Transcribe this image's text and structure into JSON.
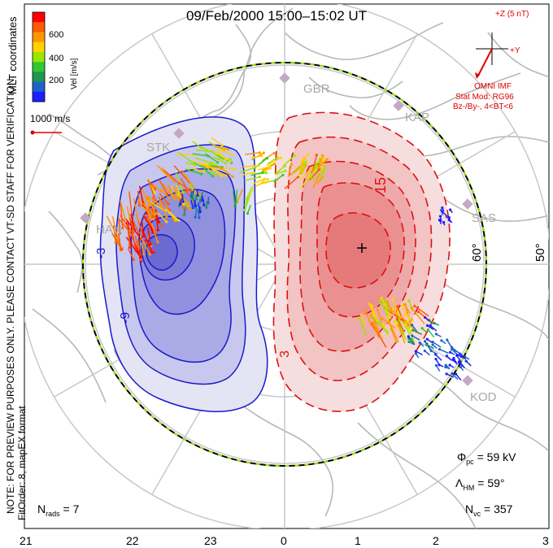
{
  "title": "09/Feb/2000 15:00–15:02 UT",
  "colorbar": {
    "label": "Vel [m/s]",
    "ticks": [
      "600",
      "400",
      "200"
    ],
    "colors": [
      "#ff0000",
      "#ff5a00",
      "#ff9600",
      "#ffd200",
      "#9be600",
      "#32c832",
      "#1e9650",
      "#1e64c8",
      "#1e1eff"
    ]
  },
  "coordinates_label": "MLT coordinates",
  "preview_note": "NOTE: FOR PREVIEW PURPOSES ONLY. PLEASE CONTACT VT-SD STAFF FOR VERIFICATION.",
  "fit_order": "FitOrder: 8, mapEX format",
  "reference_vector": "1000 m/s",
  "imf": {
    "plus_z": "+Z (5 nT)",
    "plus_y": "+Y",
    "source": "OMNI IMF",
    "stat_mod": "Stat Mod: RG96",
    "condition": "Bz-/By-, 4<BT<6"
  },
  "stations": [
    "GBR",
    "KAP",
    "STK",
    "SAS",
    "HAN",
    "KOD"
  ],
  "latitude_labels": [
    "60°",
    "50°"
  ],
  "contour_labels": [
    "-9",
    "-3",
    "3",
    "15"
  ],
  "stats": {
    "phi_pc": "59 kV",
    "lambda_hm": "59°",
    "n_vc": "357",
    "n_rads": "7"
  },
  "mlt_ticks": [
    "21",
    "22",
    "23",
    "0",
    "1",
    "2",
    "3"
  ],
  "potential_colors": {
    "negative": "#1a1acc",
    "positive": "#dd1111"
  }
}
